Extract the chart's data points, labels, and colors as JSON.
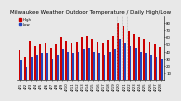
{
  "title": "Milwaukee Weather Outdoor Temperature / Daily High/Low",
  "highs": [
    42,
    32,
    55,
    48,
    50,
    52,
    45,
    50,
    60,
    55,
    52,
    54,
    60,
    62,
    57,
    54,
    52,
    56,
    62,
    80,
    75,
    68,
    65,
    60,
    57,
    54,
    50,
    46
  ],
  "lows": [
    28,
    18,
    32,
    35,
    38,
    38,
    30,
    35,
    44,
    40,
    38,
    40,
    43,
    45,
    40,
    38,
    35,
    40,
    44,
    58,
    52,
    48,
    45,
    40,
    38,
    35,
    32,
    30
  ],
  "dashed_bar": 19,
  "xlabels": [
    "4/1",
    "4/2",
    "4/3",
    "4/4",
    "4/5",
    "4/6",
    "4/7",
    "4/8",
    "4/9",
    "4/10",
    "4/11",
    "4/12",
    "4/13",
    "4/14",
    "4/15",
    "4/16",
    "4/17",
    "4/18",
    "4/19",
    "4/20",
    "4/21",
    "4/22",
    "4/23",
    "4/24",
    "4/25",
    "4/26",
    "4/27",
    "4/28"
  ],
  "high_color": "#cc0000",
  "low_color": "#2244bb",
  "bg_color": "#e8e8e8",
  "plot_bg": "#e8e8e8",
  "ylim": [
    0,
    90
  ],
  "yticks": [
    10,
    20,
    30,
    40,
    50,
    60,
    70,
    80
  ],
  "title_fontsize": 4.0,
  "tick_fontsize": 2.8,
  "legend_fontsize": 2.8,
  "bar_width": 0.35,
  "dashed_color": "#aaaaaa"
}
